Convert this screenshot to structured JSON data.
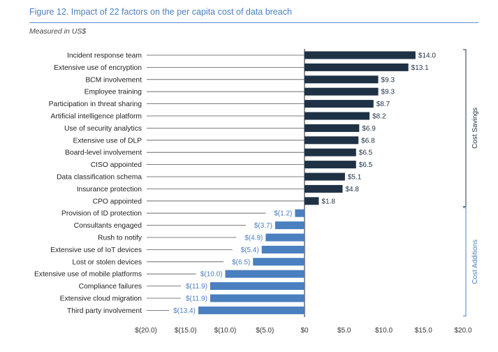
{
  "title": "Figure 12. Impact of 22 factors on the per capita cost of data breach",
  "subtitle": "Measured in US$",
  "colors": {
    "savings": "#1f3145",
    "additions": "#4a7fc0",
    "title": "#4a7fc0",
    "leader": "#555555"
  },
  "chart_data": {
    "type": "bar",
    "orientation": "horizontal",
    "title": "Figure 12. Impact of 22 factors on the per capita cost of data breach",
    "subtitle": "Measured in US$",
    "xlabel": "",
    "ylabel": "",
    "xlim": [
      -20,
      20
    ],
    "xticks": [
      -20,
      -15,
      -10,
      -5,
      0,
      5,
      10,
      15,
      20
    ],
    "xtick_labels": [
      "$(20.0)",
      "$(15.0)",
      "$(10.0)",
      "$(5.0)",
      "$0",
      "$5.0",
      "$10.0",
      "$15.0",
      "$20.0"
    ],
    "categories": [
      "Incident response team",
      "Extensive use of encryption",
      "BCM involvement",
      "Employee training",
      "Participation in threat sharing",
      "Artificial intelligence platform",
      "Use of security analytics",
      "Extensive use of DLP",
      "Board-level involvement",
      "CISO appointed",
      "Data classification schema",
      "Insurance protection",
      "CPO appointed",
      "Provision of ID protection",
      "Consultants engaged",
      "Rush to notify",
      "Extensive use of IoT devices",
      "Lost or stolen devices",
      "Extensive use of mobile platforms",
      "Compliance failures",
      "Extensive cloud migration",
      "Third party involvement"
    ],
    "values": [
      14.0,
      13.1,
      9.3,
      9.3,
      8.7,
      8.2,
      6.9,
      6.8,
      6.5,
      6.5,
      5.1,
      4.8,
      1.8,
      -1.2,
      -3.7,
      -4.9,
      -5.4,
      -6.5,
      -10.0,
      -11.9,
      -11.9,
      -13.4
    ],
    "value_labels": [
      "$14.0",
      "$13.1",
      "$9.3",
      "$9.3",
      "$8.7",
      "$8.2",
      "$6.9",
      "$6.8",
      "$6.5",
      "$6.5",
      "$5.1",
      "$4.8",
      "$1.8",
      "$(1.2)",
      "$(3.7)",
      "$(4.9)",
      "$(5.4)",
      "$(6.5)",
      "$(10.0)",
      "$(11.9)",
      "$(11.9)",
      "$(13.4)"
    ],
    "groups": [
      {
        "name": "Cost Savings",
        "start": 0,
        "end": 12
      },
      {
        "name": "Cost Additions",
        "start": 13,
        "end": 21
      }
    ],
    "grid": false,
    "legend": "none"
  }
}
